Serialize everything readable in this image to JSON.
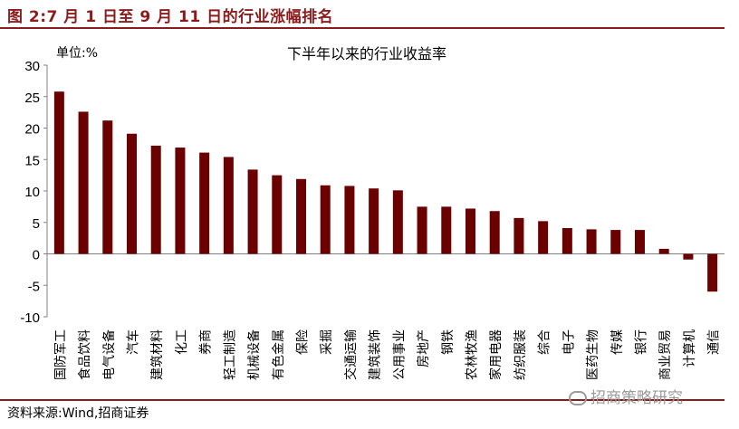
{
  "header": {
    "title": "图 2:7 月 1 日至 9 月 11 日的行业涨幅排名"
  },
  "chart_data": {
    "type": "bar",
    "title": "下半年以来的行业收益率",
    "unit_label": "单位:%",
    "categories": [
      "国防军工",
      "食品饮料",
      "电气设备",
      "汽车",
      "建筑材料",
      "化工",
      "券商",
      "轻工制造",
      "机械设备",
      "有色金属",
      "保险",
      "采掘",
      "交通运输",
      "建筑装饰",
      "公用事业",
      "房地产",
      "钢铁",
      "农林牧渔",
      "家用电器",
      "纺织服装",
      "综合",
      "电子",
      "医药生物",
      "传媒",
      "银行",
      "商业贸易",
      "计算机",
      "通信"
    ],
    "values": [
      25.8,
      22.6,
      21.2,
      19.1,
      17.2,
      16.9,
      16.1,
      15.4,
      13.4,
      12.5,
      11.9,
      10.9,
      10.8,
      10.4,
      10.1,
      7.5,
      7.5,
      7.2,
      6.8,
      5.7,
      5.2,
      4.1,
      3.9,
      3.8,
      3.8,
      0.8,
      -0.9,
      -6.0
    ],
    "ylim": [
      -10,
      30
    ],
    "yticks": [
      30,
      25,
      20,
      15,
      10,
      5,
      0,
      -5,
      -10
    ],
    "bar_color": "#6b0000",
    "grid": false,
    "legend": "none"
  },
  "footer": {
    "source": "资料来源:Wind,招商证券",
    "watermark": "招商策略研究"
  }
}
